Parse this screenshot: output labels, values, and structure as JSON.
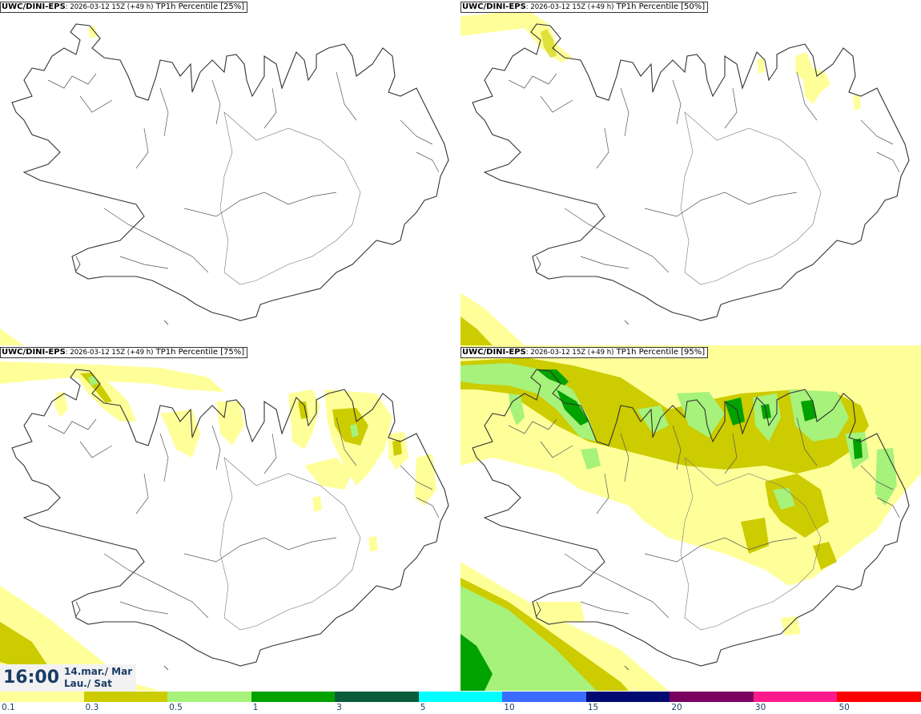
{
  "panels": [
    {
      "model": "UWC/DINI-EPS",
      "run": ": 2026-03-12 15Z (+49 h)",
      "field": " TP1h Percentile [25%]"
    },
    {
      "model": "UWC/DINI-EPS",
      "run": ": 2026-03-12 15Z (+49 h)",
      "field": " TP1h Percentile [50%]"
    },
    {
      "model": "UWC/DINI-EPS",
      "run": ": 2026-03-12 15Z (+49 h)",
      "field": " TP1h Percentile [75%]"
    },
    {
      "model": "UWC/DINI-EPS",
      "run": ": 2026-03-12 15Z (+49 h)",
      "field": " TP1h Percentile [95%]"
    }
  ],
  "valid_time": "16:00",
  "valid_date_line1": "14.mar./ Mar",
  "valid_date_line2": "Lau./ Sat",
  "colorbar": {
    "ticks": [
      "0.1",
      "0.3",
      "0.5",
      "1",
      "3",
      "5",
      "10",
      "15",
      "20",
      "30",
      "50"
    ],
    "colors": [
      "#ffff9a",
      "#cccc00",
      "#a6f27a",
      "#00a200",
      "#0a5c3c",
      "#00ffff",
      "#3c6cff",
      "#000a70",
      "#7a0060",
      "#ff1b8c",
      "#ff0000"
    ]
  }
}
